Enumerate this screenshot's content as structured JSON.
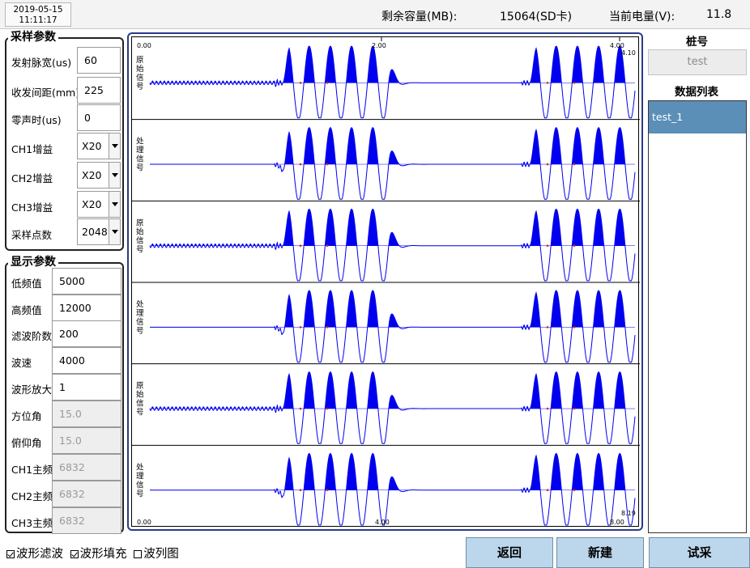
{
  "status": {
    "date": "2019-05-15",
    "time": "11:11:17",
    "capacity_label": "剩余容量(MB):",
    "capacity_value": "15064(SD卡)",
    "battery_label": "当前电量(V):",
    "battery_value": "11.8"
  },
  "sampling": {
    "title": "采样参数",
    "pulse_width_label": "发射脉宽(us)",
    "pulse_width": "60",
    "spacing_label": "收发间距(mm)",
    "spacing": "225",
    "zero_time_label": "零声时(us)",
    "zero_time": "0",
    "ch1_gain_label": "CH1增益",
    "ch1_gain": "X20",
    "ch2_gain_label": "CH2增益",
    "ch2_gain": "X20",
    "ch3_gain_label": "CH3增益",
    "ch3_gain": "X20",
    "points_label": "采样点数",
    "points": "2048"
  },
  "display": {
    "title": "显示参数",
    "low_freq_label": "低频值",
    "low_freq": "5000",
    "high_freq_label": "高频值",
    "high_freq": "12000",
    "filter_order_label": "滤波阶数",
    "filter_order": "200",
    "wave_speed_label": "波速",
    "wave_speed": "4000",
    "amplify_label": "波形放大",
    "amplify": "1",
    "azimuth_label": "方位角",
    "azimuth": "15.0",
    "pitch_label": "俯仰角",
    "pitch": "15.0",
    "ch1_freq_label": "CH1主频",
    "ch1_freq": "6832",
    "ch2_freq_label": "CH2主频",
    "ch2_freq": "6832",
    "ch3_freq_label": "CH3主频",
    "ch3_freq": "6832"
  },
  "plot": {
    "top_axis": [
      "0.00",
      "2.00",
      "4.00"
    ],
    "top_end": "4.10",
    "bottom_axis": [
      "0.00",
      "4.00",
      "8.00"
    ],
    "bottom_end": "8.19",
    "wave_color": "#0000ee",
    "channel_labels": [
      [
        "原",
        "始",
        "信",
        "号"
      ],
      [
        "处",
        "理",
        "信",
        "号"
      ],
      [
        "原",
        "始",
        "信",
        "号"
      ],
      [
        "处",
        "理",
        "信",
        "号"
      ],
      [
        "原",
        "始",
        "信",
        "号"
      ],
      [
        "处",
        "理",
        "信",
        "号"
      ]
    ]
  },
  "right_panel": {
    "pile_title": "桩号",
    "pile_value": "test",
    "list_title": "数据列表",
    "items": [
      "test_1"
    ]
  },
  "bottom": {
    "filter_label": "波形滤波",
    "fill_label": "波形填充",
    "column_label": "波列图",
    "back": "返回",
    "new": "新建",
    "trial": "试采"
  }
}
